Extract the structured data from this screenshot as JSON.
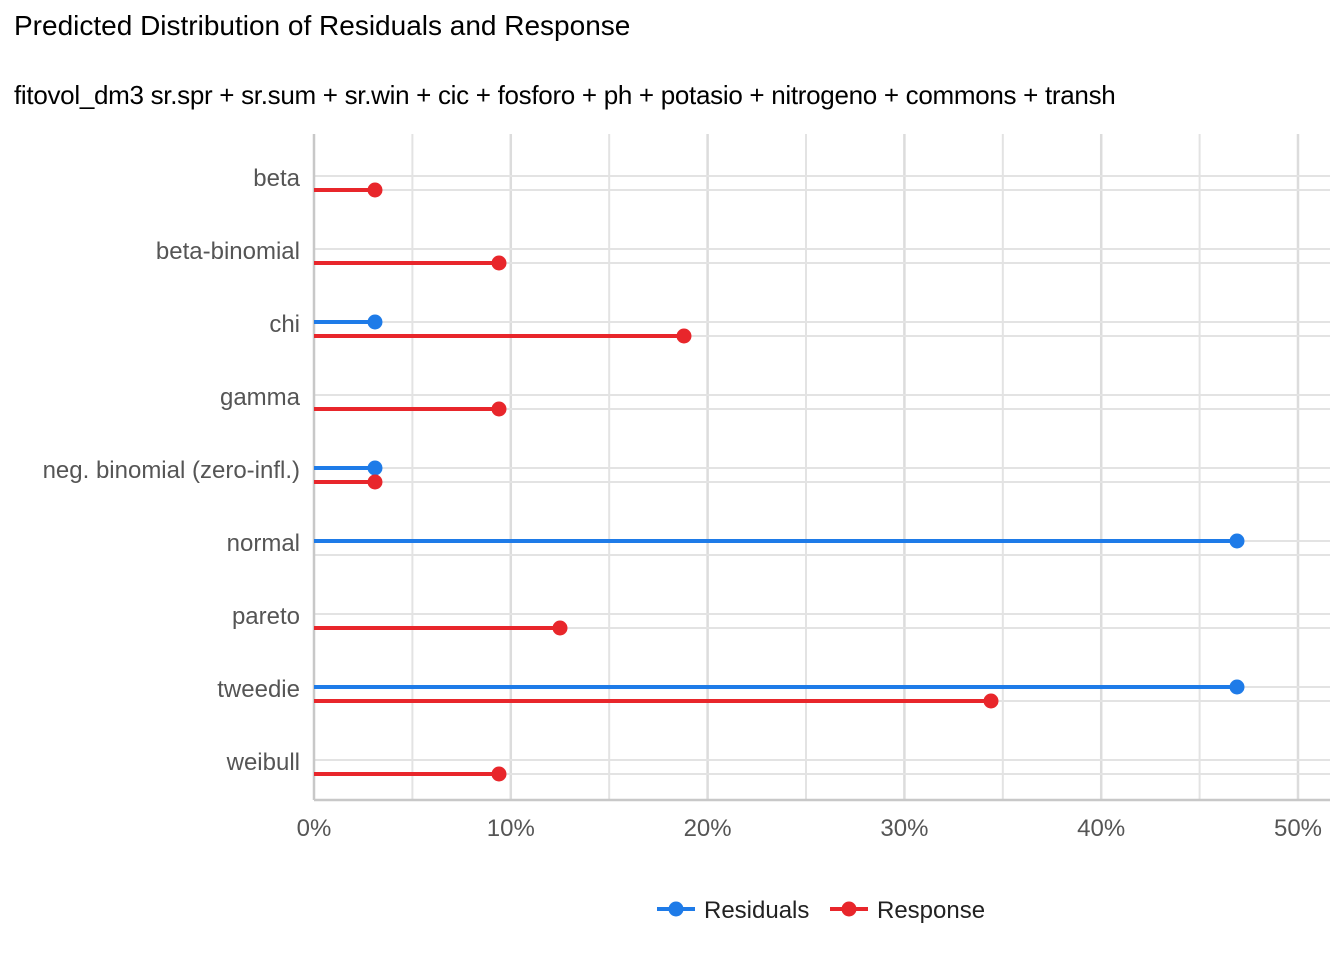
{
  "chart_data": {
    "type": "lollipop",
    "title": "Predicted Distribution of Residuals and Response",
    "subtitle": "fitovol_dm3 sr.spr + sr.sum + sr.win + cic + fosforo + ph + potasio + nitrogeno + commons + transh",
    "xlabel": "",
    "ylabel": "",
    "categories": [
      "beta",
      "beta-binomial",
      "chi",
      "gamma",
      "neg. binomial (zero-infl.)",
      "normal",
      "pareto",
      "tweedie",
      "weibull"
    ],
    "series": [
      {
        "name": "Residuals",
        "color": "#1E7BE8",
        "values": [
          null,
          null,
          3.1,
          null,
          3.1,
          46.9,
          null,
          46.9,
          null
        ]
      },
      {
        "name": "Response",
        "color": "#E8262B",
        "values": [
          3.1,
          9.4,
          18.8,
          9.4,
          3.1,
          null,
          12.5,
          34.4,
          9.4
        ]
      }
    ],
    "xticks": [
      "0%",
      "10%",
      "20%",
      "30%",
      "40%",
      "50%"
    ],
    "xlim": [
      0,
      51.5
    ],
    "grid": true,
    "legend_position": "bottom"
  }
}
